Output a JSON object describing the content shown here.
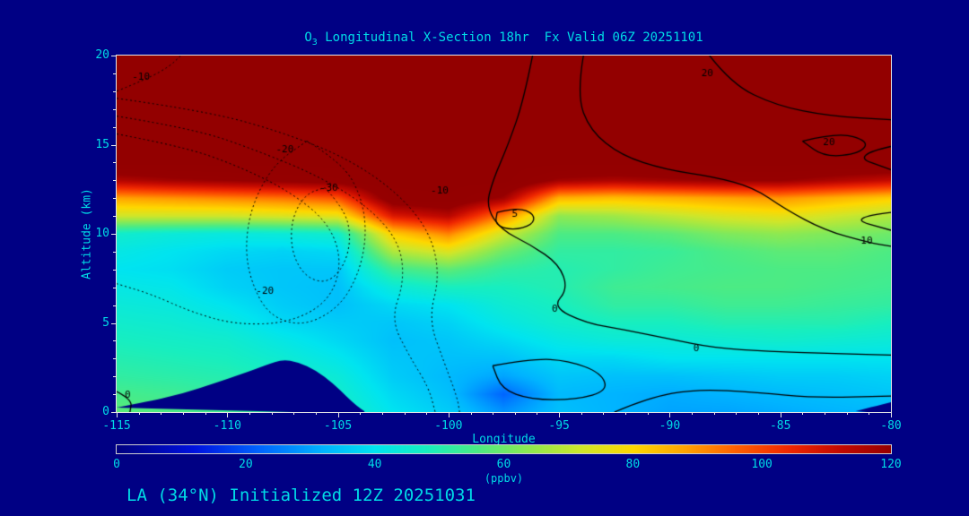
{
  "header": {
    "species": "O",
    "species_sub": "3",
    "title_rest": " Longitudinal X-Section 18hr  Fx Valid 06Z 20251101"
  },
  "footer": {
    "text": "LA (34°N) Initialized 12Z 20251031"
  },
  "colors": {
    "background": "#000084",
    "text_cyan": "#00dbe6",
    "frame": "#e6e6e6",
    "contour_line": "#000000",
    "stratosphere_cap": "#930000"
  },
  "chart_data": {
    "type": "heatmap",
    "title": "O3 Longitudinal X-Section 18hr  Fx Valid 06Z 20251101",
    "xlabel": "Longitude",
    "ylabel": "Altitude (km)",
    "xlim": [
      -115,
      -80
    ],
    "ylim": [
      0,
      20
    ],
    "x_ticks": [
      -115,
      -110,
      -105,
      -100,
      -95,
      -90,
      -85,
      -80
    ],
    "y_ticks": [
      0,
      5,
      10,
      15,
      20
    ],
    "x_minor_step": 1,
    "y_minor_step": 1,
    "grid_lines": false,
    "colorbar": {
      "label": "(ppbv)",
      "min": 0,
      "max": 120,
      "ticks": [
        0,
        20,
        40,
        60,
        80,
        100,
        120
      ]
    },
    "colormap_stops": [
      [
        0,
        "#000080"
      ],
      [
        12,
        "#0012e0"
      ],
      [
        22,
        "#0064ff"
      ],
      [
        32,
        "#00b4ff"
      ],
      [
        40,
        "#00e4f0"
      ],
      [
        48,
        "#17eec0"
      ],
      [
        56,
        "#4ceb84"
      ],
      [
        64,
        "#8fe950"
      ],
      [
        72,
        "#cfe62a"
      ],
      [
        80,
        "#fed800"
      ],
      [
        88,
        "#ffa400"
      ],
      [
        96,
        "#ff6000"
      ],
      [
        104,
        "#f02800"
      ],
      [
        112,
        "#c40a00"
      ],
      [
        120,
        "#960000"
      ],
      [
        130,
        "#930000"
      ]
    ],
    "grid": {
      "x": [
        -115,
        -112.5,
        -110,
        -107.5,
        -105,
        -102.5,
        -100,
        -97.5,
        -95,
        -92.5,
        -90,
        -87.5,
        -85,
        -82.5,
        -80
      ],
      "y": [
        0,
        1,
        2,
        3,
        4,
        5,
        6,
        7,
        8,
        9,
        10,
        11,
        12,
        13,
        14,
        15,
        16,
        17,
        18,
        19,
        20
      ],
      "values_ppbv": [
        [
          58,
          56,
          54,
          52,
          48,
          40,
          36,
          28,
          34,
          32,
          30,
          30,
          31,
          32,
          33
        ],
        [
          55,
          54,
          52,
          50,
          46,
          38,
          34,
          22,
          33,
          32,
          31,
          32,
          33,
          34,
          35
        ],
        [
          52,
          51,
          50,
          48,
          44,
          36,
          33,
          30,
          35,
          34,
          34,
          35,
          36,
          36,
          37
        ],
        [
          50,
          49,
          48,
          45,
          41,
          35,
          34,
          34,
          38,
          38,
          40,
          40,
          40,
          40,
          40
        ],
        [
          48,
          47,
          46,
          42,
          38,
          34,
          35,
          38,
          42,
          44,
          44,
          45,
          46,
          45,
          44
        ],
        [
          46,
          45,
          43,
          38,
          36,
          35,
          37,
          42,
          46,
          48,
          48,
          50,
          50,
          50,
          48
        ],
        [
          44,
          43,
          40,
          36,
          34,
          38,
          40,
          45,
          48,
          52,
          52,
          54,
          54,
          53,
          52
        ],
        [
          42,
          41,
          37,
          35,
          34,
          44,
          48,
          48,
          50,
          54,
          55,
          56,
          56,
          55,
          54
        ],
        [
          40,
          39,
          36,
          35,
          35,
          54,
          58,
          52,
          50,
          52,
          54,
          55,
          56,
          56,
          55
        ],
        [
          42,
          40,
          38,
          37,
          38,
          68,
          74,
          60,
          52,
          52,
          53,
          56,
          58,
          58,
          56
        ],
        [
          46,
          44,
          43,
          44,
          46,
          82,
          92,
          72,
          56,
          56,
          58,
          62,
          64,
          62,
          60
        ],
        [
          72,
          72,
          72,
          74,
          76,
          108,
          114,
          92,
          64,
          66,
          70,
          74,
          76,
          72,
          68
        ],
        [
          88,
          90,
          92,
          94,
          98,
          126,
          128,
          118,
          86,
          84,
          86,
          88,
          90,
          86,
          82
        ],
        [
          115,
          118,
          120,
          122,
          124,
          130,
          130,
          130,
          118,
          116,
          118,
          120,
          120,
          116,
          112
        ],
        [
          130,
          130,
          130,
          130,
          130,
          130,
          130,
          130,
          130,
          130,
          130,
          130,
          130,
          130,
          130
        ],
        [
          130,
          130,
          130,
          130,
          130,
          130,
          130,
          130,
          130,
          130,
          130,
          130,
          130,
          130,
          130
        ],
        [
          130,
          130,
          130,
          130,
          130,
          130,
          130,
          130,
          130,
          130,
          130,
          130,
          130,
          130,
          130
        ],
        [
          130,
          130,
          130,
          130,
          130,
          130,
          130,
          130,
          130,
          130,
          130,
          130,
          130,
          130,
          130
        ],
        [
          130,
          130,
          130,
          130,
          130,
          130,
          130,
          130,
          130,
          130,
          130,
          130,
          130,
          130,
          130
        ],
        [
          130,
          130,
          130,
          130,
          130,
          130,
          130,
          130,
          130,
          130,
          130,
          130,
          130,
          130,
          130
        ],
        [
          130,
          130,
          130,
          130,
          130,
          130,
          130,
          130,
          130,
          130,
          130,
          130,
          130,
          130,
          130
        ]
      ]
    },
    "terrain_km": {
      "mountain": [
        [
          -115,
          0.25
        ],
        [
          -113.5,
          0.6
        ],
        [
          -112,
          1.05
        ],
        [
          -110.5,
          1.65
        ],
        [
          -109.2,
          2.2
        ],
        [
          -108.2,
          2.65
        ],
        [
          -107.5,
          2.95
        ],
        [
          -106.8,
          2.8
        ],
        [
          -106,
          2.35
        ],
        [
          -105.2,
          1.6
        ],
        [
          -104.6,
          0.85
        ],
        [
          -104.1,
          0.3
        ],
        [
          -103.8,
          0.05
        ]
      ],
      "right_bump": [
        [
          -81.6,
          0.05
        ],
        [
          -80.8,
          0.3
        ],
        [
          -80,
          0.55
        ]
      ]
    },
    "overlay_contours": [
      {
        "level": -10,
        "style": "dotted",
        "points": [
          [
            -115,
            18.0
          ],
          [
            -113.6,
            18.7
          ],
          [
            -112.6,
            19.4
          ],
          [
            -112.1,
            20
          ]
        ]
      },
      {
        "level": -10,
        "style": "dotted",
        "points": [
          [
            -115,
            16.6
          ],
          [
            -111.5,
            15.9
          ],
          [
            -108.5,
            14.6
          ],
          [
            -105.8,
            13.2
          ],
          [
            -103.6,
            11.5
          ],
          [
            -102.2,
            9.5
          ],
          [
            -102.0,
            7.3
          ],
          [
            -102.6,
            5.2
          ],
          [
            -101.8,
            3.2
          ],
          [
            -100.9,
            1.4
          ],
          [
            -100.6,
            0
          ]
        ]
      },
      {
        "level": -5,
        "style": "dotted",
        "points": [
          [
            -115,
            17.6
          ],
          [
            -111,
            16.9
          ],
          [
            -107.5,
            15.7
          ],
          [
            -104.5,
            14.2
          ],
          [
            -102.2,
            12.2
          ],
          [
            -100.8,
            10.0
          ],
          [
            -100.4,
            7.6
          ],
          [
            -100.9,
            5.2
          ],
          [
            -100.2,
            2.8
          ],
          [
            -99.6,
            0.8
          ],
          [
            -99.5,
            0
          ]
        ]
      },
      {
        "level": -15,
        "style": "dotted",
        "points": [
          [
            -115,
            15.6
          ],
          [
            -112,
            14.9
          ],
          [
            -109.5,
            13.8
          ],
          [
            -107.2,
            12.4
          ],
          [
            -105.4,
            10.6
          ],
          [
            -104.8,
            8.4
          ],
          [
            -105.4,
            6.2
          ],
          [
            -107.2,
            5.0
          ],
          [
            -109.6,
            4.9
          ],
          [
            -111.6,
            5.6
          ],
          [
            -113.4,
            6.6
          ],
          [
            -115,
            7.2
          ]
        ]
      },
      {
        "level": -20,
        "style": "dotted",
        "points": [
          [
            -106.4,
            15.2
          ],
          [
            -104.8,
            14.0
          ],
          [
            -103.9,
            12.0
          ],
          [
            -103.7,
            9.8
          ],
          [
            -104.1,
            7.6
          ],
          [
            -105.0,
            5.8
          ],
          [
            -106.6,
            4.8
          ],
          [
            -108.1,
            5.4
          ],
          [
            -108.9,
            7.2
          ],
          [
            -109.2,
            9.2
          ],
          [
            -108.9,
            11.6
          ],
          [
            -107.9,
            13.9
          ],
          [
            -106.4,
            15.2
          ]
        ]
      },
      {
        "level": -30,
        "style": "dotted",
        "points": [
          [
            -105.6,
            12.6
          ],
          [
            -104.7,
            11.4
          ],
          [
            -104.4,
            9.8
          ],
          [
            -104.7,
            8.2
          ],
          [
            -105.5,
            7.2
          ],
          [
            -106.5,
            7.6
          ],
          [
            -107.1,
            9.0
          ],
          [
            -107.1,
            10.8
          ],
          [
            -106.5,
            12.2
          ],
          [
            -105.6,
            12.6
          ]
        ]
      },
      {
        "level": 0,
        "style": "solid",
        "points": [
          [
            -96.2,
            20
          ],
          [
            -96.6,
            17.5
          ],
          [
            -97.3,
            15.0
          ],
          [
            -98.0,
            13.0
          ],
          [
            -98.3,
            11.5
          ],
          [
            -97.6,
            10.2
          ],
          [
            -96.3,
            9.4
          ],
          [
            -95.0,
            8.3
          ],
          [
            -94.6,
            6.9
          ],
          [
            -95.3,
            5.9
          ],
          [
            -93.8,
            5.0
          ],
          [
            -92.0,
            4.6
          ],
          [
            -90.0,
            4.1
          ],
          [
            -88.0,
            3.6
          ],
          [
            -85.5,
            3.4
          ],
          [
            -83.0,
            3.3
          ],
          [
            -80,
            3.2
          ]
        ]
      },
      {
        "level": 0,
        "style": "solid",
        "points": [
          [
            -98.0,
            2.6
          ],
          [
            -96.2,
            3.0
          ],
          [
            -94.6,
            2.9
          ],
          [
            -93.1,
            2.2
          ],
          [
            -92.8,
            1.2
          ],
          [
            -94.2,
            0.7
          ],
          [
            -96.3,
            0.7
          ],
          [
            -97.6,
            1.3
          ],
          [
            -98.0,
            2.6
          ]
        ]
      },
      {
        "level": 0,
        "style": "solid",
        "points": [
          [
            -92.5,
            0
          ],
          [
            -91.0,
            0.8
          ],
          [
            -88.8,
            1.3
          ],
          [
            -86.0,
            1.1
          ],
          [
            -83.5,
            0.8
          ],
          [
            -80,
            0.9
          ]
        ]
      },
      {
        "level": 0,
        "style": "solid",
        "points": [
          [
            -115,
            1.15
          ],
          [
            -114.3,
            0.7
          ],
          [
            -114.4,
            0
          ]
        ]
      },
      {
        "level": 5,
        "style": "solid",
        "points": [
          [
            -97.8,
            11.2
          ],
          [
            -96.9,
            11.5
          ],
          [
            -96.1,
            11.1
          ],
          [
            -96.2,
            10.5
          ],
          [
            -97.1,
            10.2
          ],
          [
            -97.9,
            10.5
          ],
          [
            -97.8,
            11.2
          ]
        ]
      },
      {
        "level": 10,
        "style": "solid",
        "points": [
          [
            -93.9,
            20
          ],
          [
            -94.2,
            17.8
          ],
          [
            -93.6,
            15.8
          ],
          [
            -92.2,
            14.4
          ],
          [
            -90.2,
            13.6
          ],
          [
            -88.0,
            13.2
          ],
          [
            -86.2,
            12.6
          ],
          [
            -84.8,
            11.4
          ],
          [
            -83.0,
            10.2
          ],
          [
            -81.0,
            9.5
          ],
          [
            -80,
            9.3
          ]
        ]
      },
      {
        "level": 10,
        "style": "solid",
        "points": [
          [
            -80,
            11.2
          ],
          [
            -82.0,
            10.9
          ],
          [
            -80,
            10.2
          ]
        ]
      },
      {
        "level": 20,
        "style": "solid",
        "points": [
          [
            -88.2,
            20
          ],
          [
            -87.2,
            18.4
          ],
          [
            -85.2,
            17.2
          ],
          [
            -82.8,
            16.6
          ],
          [
            -80,
            16.4
          ]
        ]
      },
      {
        "level": 20,
        "style": "solid",
        "points": [
          [
            -84.0,
            15.2
          ],
          [
            -82.4,
            15.7
          ],
          [
            -81.0,
            15.2
          ],
          [
            -81.4,
            14.5
          ],
          [
            -83.0,
            14.3
          ],
          [
            -84.0,
            15.2
          ]
        ]
      },
      {
        "level": 30,
        "style": "solid",
        "points": [
          [
            -80,
            14.9
          ],
          [
            -81.8,
            14.4
          ],
          [
            -80,
            13.6
          ]
        ]
      }
    ],
    "contour_labels": [
      {
        "text": "-10",
        "lon": -113.9,
        "alt": 18.8
      },
      {
        "text": "-20",
        "lon": -107.4,
        "alt": 14.7
      },
      {
        "text": "-30",
        "lon": -105.4,
        "alt": 12.55
      },
      {
        "text": "-20",
        "lon": -108.3,
        "alt": 6.8
      },
      {
        "text": "-10",
        "lon": -100.4,
        "alt": 12.4
      },
      {
        "text": "0",
        "lon": -95.2,
        "alt": 5.75
      },
      {
        "text": "0",
        "lon": -88.8,
        "alt": 3.55
      },
      {
        "text": "0",
        "lon": -114.5,
        "alt": 0.95
      },
      {
        "text": "5",
        "lon": -97.0,
        "alt": 11.1
      },
      {
        "text": "10",
        "lon": -81.1,
        "alt": 9.6
      },
      {
        "text": "20",
        "lon": -88.3,
        "alt": 19.0
      },
      {
        "text": "20",
        "lon": -82.8,
        "alt": 15.1
      }
    ]
  }
}
